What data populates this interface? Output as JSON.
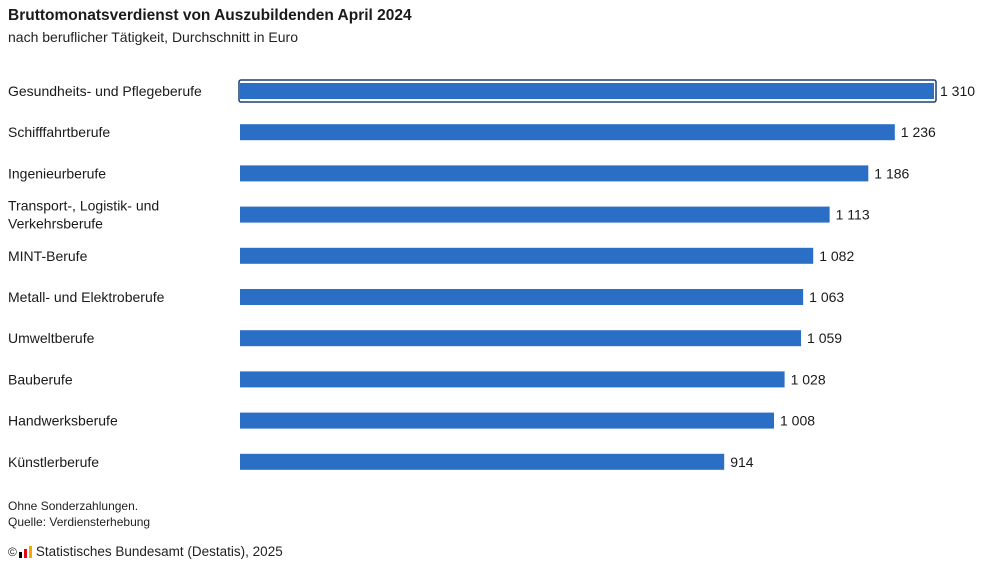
{
  "header": {
    "title": "Bruttomonatsverdienst von Auszubildenden April 2024",
    "subtitle": "nach beruflicher Tätigkeit, Durchschnitt in Euro"
  },
  "notes": {
    "line1": "Ohne Sonderzahlungen.",
    "line2": "Quelle: Verdiensterhebung"
  },
  "footer": {
    "copyright_symbol": "©",
    "source": "Statistisches Bundesamt (Destatis), 2025"
  },
  "colors": {
    "bar": "#2a6ec6",
    "highlight_outline": "#1b3f73"
  },
  "chart_data": {
    "type": "bar",
    "orientation": "horizontal",
    "title": "Bruttomonatsverdienst von Auszubildenden April 2024",
    "subtitle": "nach beruflicher Tätigkeit, Durchschnitt in Euro",
    "xlabel": "",
    "ylabel": "",
    "grid": false,
    "legend": "none",
    "xlim": [
      0,
      1310
    ],
    "categories": [
      [
        "Gesundheits- und Pflegeberufe"
      ],
      [
        "Schifffahrtberufe"
      ],
      [
        "Ingenieurberufe"
      ],
      [
        "Transport-, Logistik- und",
        "Verkehrsberufe"
      ],
      [
        "MINT-Berufe"
      ],
      [
        "Metall- und Elektroberufe"
      ],
      [
        "Umweltberufe"
      ],
      [
        "Bauberufe"
      ],
      [
        "Handwerksberufe"
      ],
      [
        "Künstlerberufe"
      ]
    ],
    "values": [
      1310,
      1236,
      1186,
      1113,
      1082,
      1063,
      1059,
      1028,
      1008,
      914
    ],
    "value_labels": [
      "1 310",
      "1 236",
      "1 186",
      "1 113",
      "1 082",
      "1 063",
      "1 059",
      "1 028",
      "1 008",
      "914"
    ],
    "highlighted_index": 0
  }
}
